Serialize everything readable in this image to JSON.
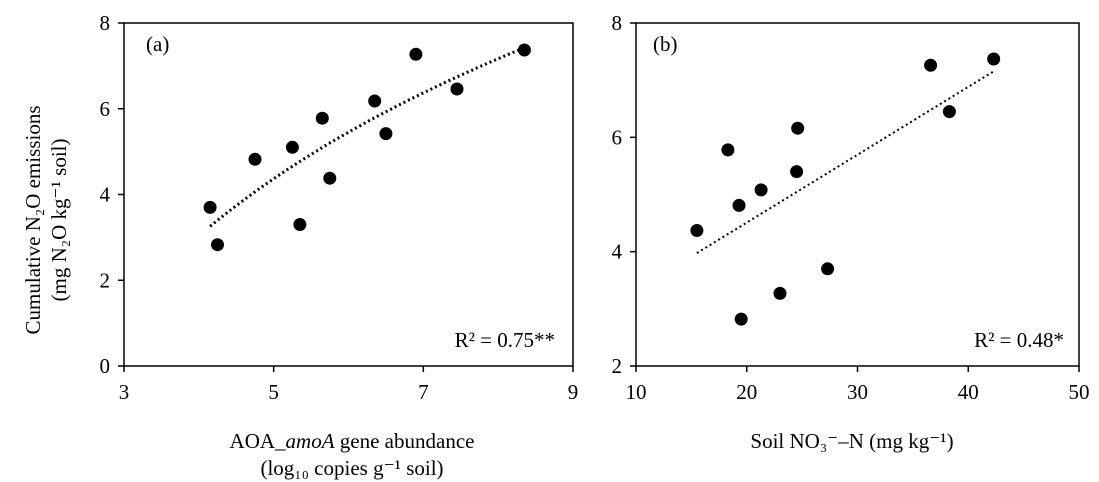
{
  "shared": {
    "ylabel_line1": "Cumulative N₂O emissions",
    "ylabel_line2": "(mg N₂O kg⁻¹ soil)"
  },
  "chart_data": [
    {
      "type": "scatter",
      "panel_label": "(a)",
      "xlabel_line1_pre": "AOA_",
      "xlabel_line1_italic": "amoA",
      "xlabel_line1_post": " gene abundance",
      "xlabel_line2": "(log₁₀ copies g⁻¹ soil)",
      "xlim": [
        3,
        9
      ],
      "ylim": [
        0,
        8
      ],
      "xticks": [
        3,
        5,
        7,
        9
      ],
      "yticks": [
        0,
        2,
        4,
        6,
        8
      ],
      "r2_label": "R² = 0.75**",
      "trendline": {
        "type": "logarithmic",
        "x_range": [
          4.15,
          8.35
        ],
        "style": "dotted"
      },
      "grid": false,
      "points": [
        {
          "x": 4.15,
          "y": 3.7
        },
        {
          "x": 4.25,
          "y": 2.83
        },
        {
          "x": 4.75,
          "y": 4.82
        },
        {
          "x": 5.25,
          "y": 5.1
        },
        {
          "x": 5.35,
          "y": 3.3
        },
        {
          "x": 5.65,
          "y": 5.78
        },
        {
          "x": 5.75,
          "y": 4.38
        },
        {
          "x": 6.35,
          "y": 6.18
        },
        {
          "x": 6.5,
          "y": 5.42
        },
        {
          "x": 6.9,
          "y": 7.27
        },
        {
          "x": 7.45,
          "y": 6.46
        },
        {
          "x": 8.35,
          "y": 7.37
        }
      ]
    },
    {
      "type": "scatter",
      "panel_label": "(b)",
      "xlabel_pre": "Soil NO₃⁻–N (mg kg⁻¹)",
      "xlim": [
        10,
        50
      ],
      "ylim": [
        2,
        8
      ],
      "xticks": [
        10,
        20,
        30,
        40,
        50
      ],
      "yticks": [
        2,
        4,
        6,
        8
      ],
      "r2_label": "R² = 0.48*",
      "trendline": {
        "type": "linear",
        "x_range": [
          15.5,
          42.3
        ],
        "style": "dotted"
      },
      "grid": false,
      "points": [
        {
          "x": 15.5,
          "y": 4.37
        },
        {
          "x": 18.3,
          "y": 5.78
        },
        {
          "x": 19.3,
          "y": 4.81
        },
        {
          "x": 19.5,
          "y": 2.82
        },
        {
          "x": 21.3,
          "y": 5.08
        },
        {
          "x": 23.0,
          "y": 3.27
        },
        {
          "x": 24.5,
          "y": 5.4
        },
        {
          "x": 24.6,
          "y": 6.16
        },
        {
          "x": 27.3,
          "y": 3.7
        },
        {
          "x": 36.6,
          "y": 7.26
        },
        {
          "x": 38.3,
          "y": 6.45
        },
        {
          "x": 42.3,
          "y": 7.37
        }
      ]
    }
  ]
}
